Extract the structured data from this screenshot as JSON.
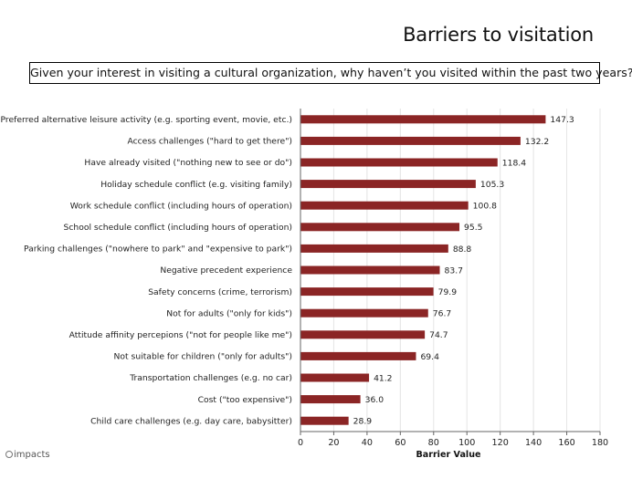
{
  "title": "Barriers to visitation",
  "question": "Given your interest in visiting a cultural organization, why haven’t you visited within the past two years?",
  "logo_text": "impacts",
  "colors": {
    "bar": "#8b2525",
    "axis": "#666666",
    "grid": "#e4e4e4"
  },
  "chart_data": {
    "type": "bar",
    "orientation": "horizontal",
    "categories": [
      "Preferred alternative leisure activity (e.g. sporting event, movie, etc.)",
      "Access challenges (\"hard to get there\")",
      "Have already visited (\"nothing new to see or do\")",
      "Holiday schedule conflict (e.g. visiting family)",
      "Work schedule conflict (including hours of operation)",
      "School schedule conflict (including hours of operation)",
      "Parking challenges (\"nowhere to park\" and \"expensive to park\")",
      "Negative precedent experience",
      "Safety concerns (crime, terrorism)",
      "Not for adults (\"only for kids\")",
      "Attitude affinity percepions (\"not for people like me\")",
      "Not suitable for children (\"only for adults\")",
      "Transportation challenges (e.g. no car)",
      "Cost (\"too expensive\")",
      "Child care challenges (e.g. day care, babysitter)"
    ],
    "values": [
      147.3,
      132.2,
      118.4,
      105.3,
      100.8,
      95.5,
      88.8,
      83.7,
      79.9,
      76.7,
      74.7,
      69.4,
      41.2,
      36.0,
      28.9
    ],
    "value_labels": [
      "147.3",
      "132.2",
      "118.4",
      "105.3",
      "100.8",
      "95.5",
      "88.8",
      "83.7",
      "79.9",
      "76.7",
      "74.7",
      "69.4",
      "41.2",
      "36.0",
      "28.9"
    ],
    "xlabel": "Barrier Value",
    "xlim": [
      0,
      180
    ],
    "xticks": [
      "0",
      "20",
      "40",
      "60",
      "80",
      "100",
      "120",
      "140",
      "160",
      "180"
    ],
    "grid": true
  }
}
